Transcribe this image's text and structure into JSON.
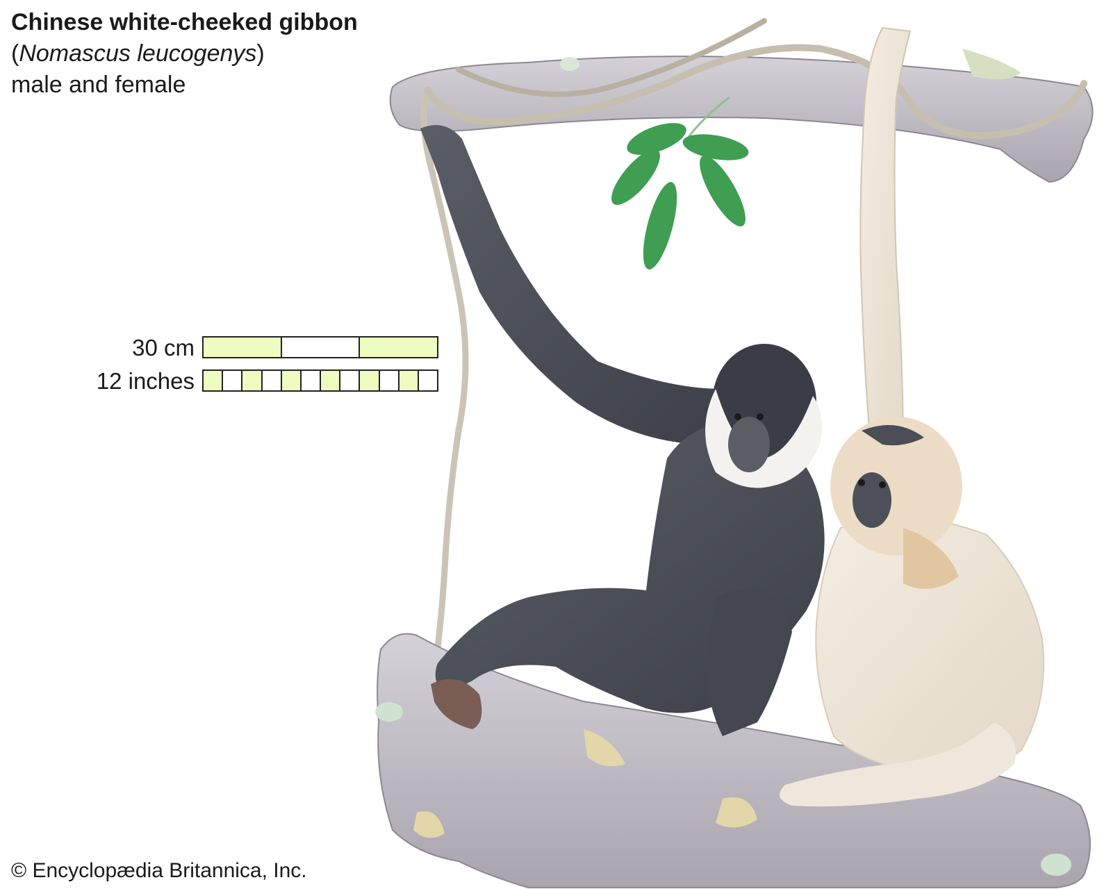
{
  "caption": {
    "title": "Chinese white-cheeked gibbon",
    "scientific_open": "(",
    "scientific_name": "Nomascus leucogenys",
    "scientific_close": ")",
    "subtitle": "male and female"
  },
  "scale": {
    "metric_label": "30 cm",
    "imperial_label": "12 inches",
    "metric_segments": 3,
    "imperial_segments": 12,
    "fill_color": "#eefcc0",
    "empty_color": "#ffffff"
  },
  "copyright": "© Encyclopædia Britannica, Inc.",
  "colors": {
    "branch": "#bcb8c0",
    "vine": "#c9c2b4",
    "male_fur": "#4d5058",
    "female_fur": "#ece4d8",
    "leaf": "#3f9e52"
  }
}
